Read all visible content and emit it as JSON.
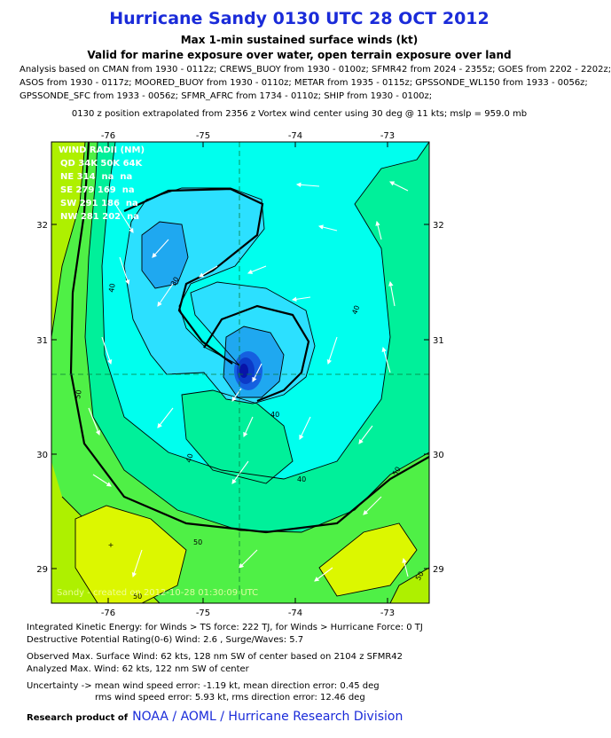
{
  "title": "Hurricane Sandy 0130 UTC 28 OCT 2012",
  "subtitle1": "Max 1-min sustained surface winds (kt)",
  "subtitle2": "Valid for marine exposure over water, open terrain exposure over land",
  "analysis_lines": [
    "Analysis based on CMAN from 1930 - 0112z; CREWS_BUOY from 1930 - 0100z; SFMR42 from 2024 - 2355z; GOES from 2202 - 2202z;",
    "ASOS from 1930 - 0117z; MOORED_BUOY from 1930 - 0110z; METAR from 1935 - 0115z; GPSSONDE_WL150 from 1933 - 0056z;",
    "GPSSONDE_SFC from 1933 - 0056z; SFMR_AFRC from 1734 - 0110z; SHIP from 1930 - 0100z;"
  ],
  "position_note": "0130 z position extrapolated from 2356 z Vortex wind center using 30 deg @ 11 kts; mslp = 959.0 mb",
  "map": {
    "x_ticks_top": [
      "-76",
      "-75",
      "-74",
      "-73"
    ],
    "x_ticks_bottom": [
      "-76",
      "-75",
      "-74",
      "-73"
    ],
    "y_ticks": [
      "32",
      "31",
      "30",
      "29"
    ],
    "contour_labels": [
      "30",
      "40",
      "40",
      "40",
      "40",
      "40",
      "50",
      "50",
      "50",
      "50",
      "50"
    ],
    "wind_radii": {
      "title": "WIND RADII (NM)",
      "header": "QD 34K 50K 64K",
      "rows": [
        "NE 314  na  na",
        "SE 279 169  na",
        "SW 291 186  na",
        "NW 281 202  na"
      ]
    },
    "watermark": "Sandy - created on 2012-10-28 01:30:09 UTC"
  },
  "footer": {
    "ike": "Integrated Kinetic Energy: for Winds > TS force: 222 TJ, for Winds > Hurricane Force: 0 TJ",
    "dpr": "Destructive Potential Rating(0-6)  Wind: 2.6 , Surge/Waves: 5.7",
    "observed": "Observed Max. Surface Wind: 62 kts, 128 nm SW of center based on 2104 z SFMR42",
    "analyzed": "Analyzed Max. Wind: 62 kts, 122 nm  SW of center",
    "uncertainty": "Uncertainty -> mean wind speed error:  -1.19 kt, mean direction error: 0.45 deg",
    "rms": "rms wind speed error: 5.93 kt, rms direction error: 12.46 deg",
    "research_label": "Research product of",
    "research_org": "NOAA / AOML / Hurricane Research Division"
  },
  "colors": {
    "title": "#1a2bd9",
    "lime": "#aef000",
    "green": "#4ff046",
    "teal": "#00f09a",
    "cyan": "#00ffee",
    "lightblue": "#2ce0ff",
    "blue": "#1fa8f0",
    "deep": "#1560e0",
    "core": "#0814a8"
  }
}
